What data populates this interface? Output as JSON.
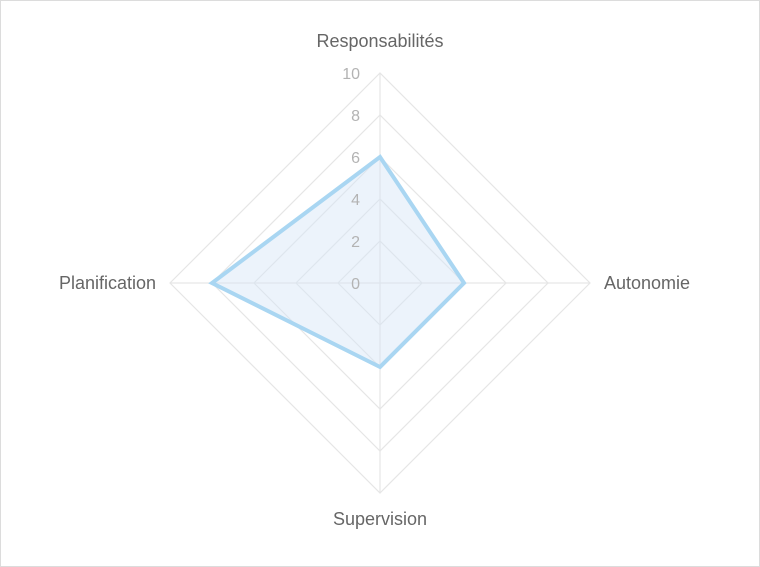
{
  "chart_data": {
    "type": "radar",
    "axes": [
      "Responsabilités",
      "Autonomie",
      "Supervision",
      "Planification"
    ],
    "rlim": [
      0,
      10
    ],
    "ticks": [
      "0",
      "2",
      "4",
      "6",
      "8",
      "10"
    ],
    "tick_values": [
      0,
      2,
      4,
      6,
      8,
      10
    ],
    "series": [
      {
        "values": [
          6,
          4,
          4,
          8
        ],
        "color": "#a9d6f2",
        "fill": "#d4e4f6"
      }
    ],
    "grid": true,
    "legend": "none"
  }
}
